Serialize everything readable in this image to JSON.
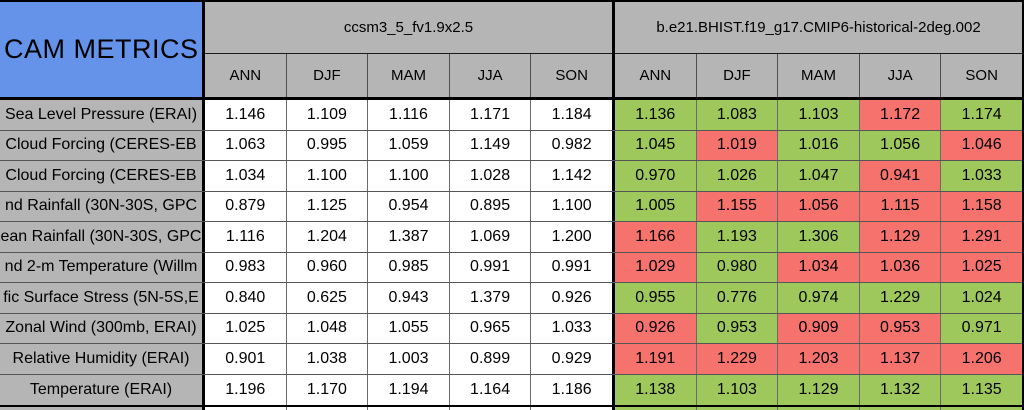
{
  "chart_data": {
    "type": "table",
    "title": "CAM METRICS",
    "column_groups": [
      {
        "name": "ccsm3_5_fv1.9x2.5",
        "seasons": [
          "ANN",
          "DJF",
          "MAM",
          "JJA",
          "SON"
        ]
      },
      {
        "name": "b.e21.BHIST.f19_g17.CMIP6-historical-2deg.002",
        "seasons": [
          "ANN",
          "DJF",
          "MAM",
          "JJA",
          "SON"
        ]
      }
    ],
    "rows": [
      {
        "label": "Sea Level Pressure (ERAI)",
        "baseline": [
          "1.146",
          "1.109",
          "1.116",
          "1.171",
          "1.184"
        ],
        "compare": [
          "1.136",
          "1.083",
          "1.103",
          "1.172",
          "1.174"
        ],
        "compare_status": [
          "better",
          "better",
          "better",
          "worse",
          "better"
        ]
      },
      {
        "label": "Cloud Forcing (CERES-EB",
        "baseline": [
          "1.063",
          "0.995",
          "1.059",
          "1.149",
          "0.982"
        ],
        "compare": [
          "1.045",
          "1.019",
          "1.016",
          "1.056",
          "1.046"
        ],
        "compare_status": [
          "better",
          "worse",
          "better",
          "better",
          "worse"
        ]
      },
      {
        "label": "Cloud Forcing (CERES-EB",
        "baseline": [
          "1.034",
          "1.100",
          "1.100",
          "1.028",
          "1.142"
        ],
        "compare": [
          "0.970",
          "1.026",
          "1.047",
          "0.941",
          "1.033"
        ],
        "compare_status": [
          "better",
          "better",
          "better",
          "worse",
          "better"
        ]
      },
      {
        "label": "nd Rainfall (30N-30S, GPC",
        "baseline": [
          "0.879",
          "1.125",
          "0.954",
          "0.895",
          "1.100"
        ],
        "compare": [
          "1.005",
          "1.155",
          "1.056",
          "1.115",
          "1.158"
        ],
        "compare_status": [
          "better",
          "worse",
          "worse",
          "worse",
          "worse"
        ]
      },
      {
        "label": "ean Rainfall (30N-30S, GPC",
        "baseline": [
          "1.116",
          "1.204",
          "1.387",
          "1.069",
          "1.200"
        ],
        "compare": [
          "1.166",
          "1.193",
          "1.306",
          "1.129",
          "1.291"
        ],
        "compare_status": [
          "worse",
          "better",
          "better",
          "worse",
          "worse"
        ]
      },
      {
        "label": "nd 2-m Temperature (Willm",
        "baseline": [
          "0.983",
          "0.960",
          "0.985",
          "0.991",
          "0.991"
        ],
        "compare": [
          "1.029",
          "0.980",
          "1.034",
          "1.036",
          "1.025"
        ],
        "compare_status": [
          "worse",
          "better",
          "worse",
          "worse",
          "worse"
        ]
      },
      {
        "label": "fic Surface Stress (5N-5S,E",
        "baseline": [
          "0.840",
          "0.625",
          "0.943",
          "1.379",
          "0.926"
        ],
        "compare": [
          "0.955",
          "0.776",
          "0.974",
          "1.229",
          "1.024"
        ],
        "compare_status": [
          "better",
          "better",
          "better",
          "better",
          "better"
        ]
      },
      {
        "label": "Zonal Wind (300mb, ERAI)",
        "baseline": [
          "1.025",
          "1.048",
          "1.055",
          "0.965",
          "1.033"
        ],
        "compare": [
          "0.926",
          "0.953",
          "0.909",
          "0.953",
          "0.971"
        ],
        "compare_status": [
          "worse",
          "better",
          "worse",
          "worse",
          "better"
        ]
      },
      {
        "label": "Relative Humidity (ERAI)",
        "baseline": [
          "0.901",
          "1.038",
          "1.003",
          "0.899",
          "0.929"
        ],
        "compare": [
          "1.191",
          "1.229",
          "1.203",
          "1.137",
          "1.206"
        ],
        "compare_status": [
          "worse",
          "worse",
          "worse",
          "worse",
          "worse"
        ]
      },
      {
        "label": "Temperature (ERAI)",
        "baseline": [
          "1.196",
          "1.170",
          "1.194",
          "1.164",
          "1.186"
        ],
        "compare": [
          "1.138",
          "1.103",
          "1.129",
          "1.132",
          "1.135"
        ],
        "compare_status": [
          "better",
          "better",
          "better",
          "better",
          "better"
        ]
      }
    ],
    "partial_next_row": {
      "compare_status": "better"
    },
    "colors": {
      "title_bg": "#6593EA",
      "header_bg": "#B5B5B5",
      "better_bg": "#9FC85C",
      "worse_bg": "#F5736C",
      "cell_bg": "#FFFFFF",
      "text": "#000000"
    }
  }
}
